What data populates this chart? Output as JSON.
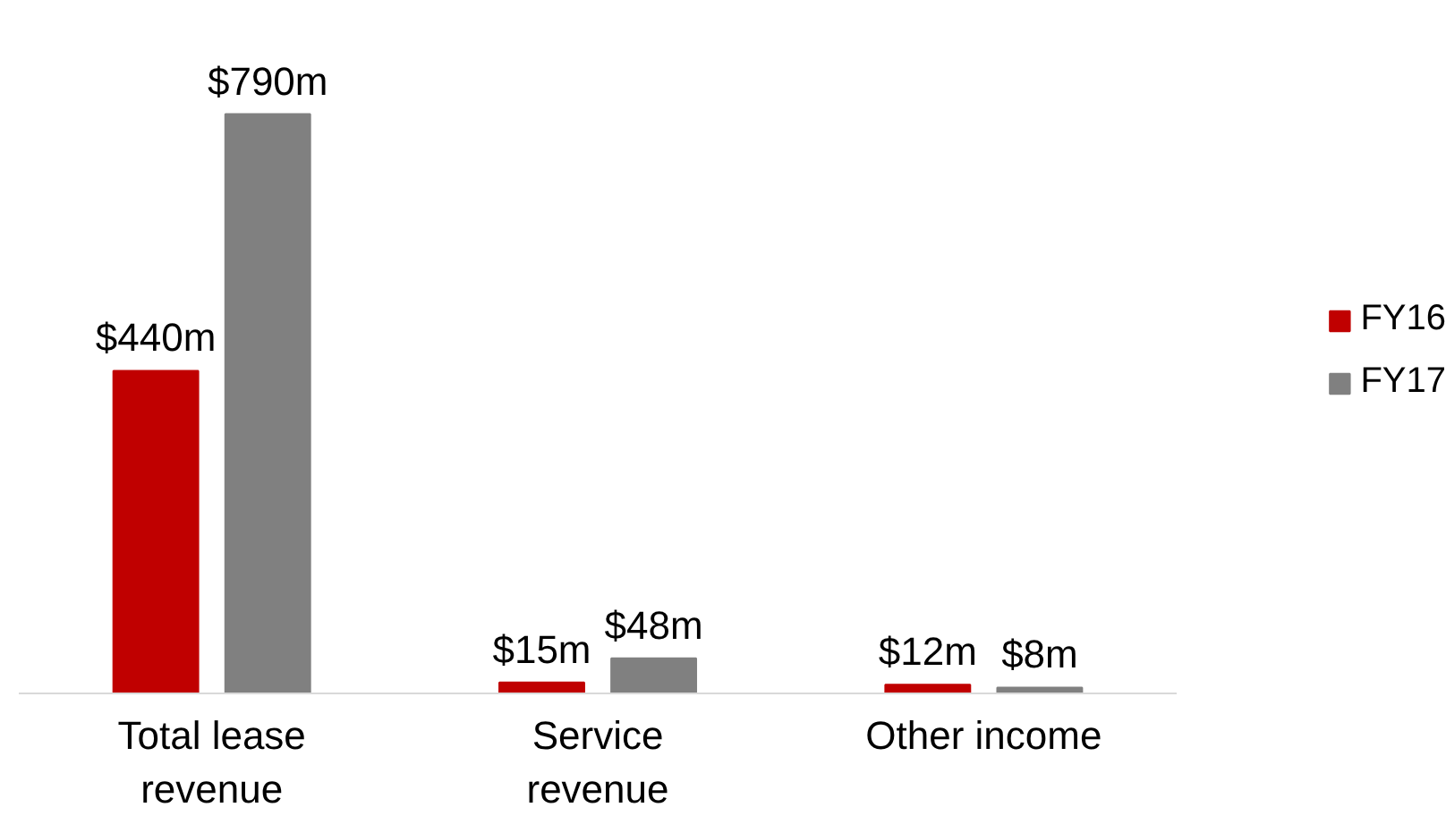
{
  "chart_data": {
    "type": "bar",
    "categories": [
      "Total lease revenue",
      "Service revenue",
      "Other income"
    ],
    "series": [
      {
        "name": "FY16",
        "color": "#c00000",
        "values": [
          440,
          15,
          12
        ],
        "value_labels": [
          "$440m",
          "$15m",
          "$12m"
        ]
      },
      {
        "name": "FY17",
        "color": "#808080",
        "values": [
          790,
          48,
          8
        ],
        "value_labels": [
          "$790m",
          "$48m",
          "$8m"
        ]
      }
    ],
    "legend": "right",
    "grid": false
  }
}
